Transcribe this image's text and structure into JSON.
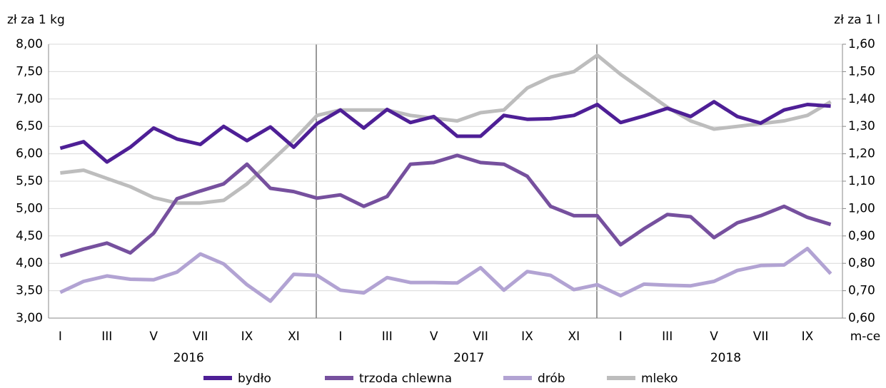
{
  "chart_data": {
    "type": "line",
    "y_label": "zł za 1 kg",
    "y2_label": "zł za 1 l",
    "x_label": "m-ce",
    "categories": [
      "I",
      null,
      "III",
      null,
      "V",
      null,
      "VII",
      null,
      "IX",
      null,
      "XI",
      null,
      "I",
      null,
      "III",
      null,
      "V",
      null,
      "VII",
      null,
      "IX",
      null,
      "XI",
      null,
      "I",
      null,
      "III",
      null,
      "V",
      null,
      "VII",
      null,
      "IX",
      null
    ],
    "years": [
      "2016",
      "2017",
      "2018"
    ],
    "ylim": [
      3,
      8
    ],
    "yticks": [
      {
        "value": 3,
        "label": "3,00"
      },
      {
        "value": 3.5,
        "label": "3,50"
      },
      {
        "value": 4,
        "label": "4,00"
      },
      {
        "value": 4.5,
        "label": "4,50"
      },
      {
        "value": 5,
        "label": "5,00"
      },
      {
        "value": 5.5,
        "label": "5,50"
      },
      {
        "value": 6,
        "label": "6,00"
      },
      {
        "value": 6.5,
        "label": "6,50"
      },
      {
        "value": 7,
        "label": "7,00"
      },
      {
        "value": 7.5,
        "label": "7,50"
      },
      {
        "value": 8,
        "label": "8,00"
      }
    ],
    "y2lim": [
      0.6,
      1.6
    ],
    "y2ticks": [
      {
        "value": 0.6,
        "label": "0,60"
      },
      {
        "value": 0.7,
        "label": "0,70"
      },
      {
        "value": 0.8,
        "label": "0,80"
      },
      {
        "value": 0.9,
        "label": "0,90"
      },
      {
        "value": 1.0,
        "label": "1,00"
      },
      {
        "value": 1.1,
        "label": "1,10"
      },
      {
        "value": 1.2,
        "label": "1,20"
      },
      {
        "value": 1.3,
        "label": "1,30"
      },
      {
        "value": 1.4,
        "label": "1,40"
      },
      {
        "value": 1.5,
        "label": "1,50"
      },
      {
        "value": 1.6,
        "label": "1,60"
      }
    ],
    "grid": true,
    "series": [
      {
        "name": "bydło",
        "color": "#4e1f96",
        "values": [
          6.1,
          6.22,
          5.85,
          6.12,
          6.47,
          6.27,
          6.17,
          6.5,
          6.24,
          6.49,
          6.12,
          6.55,
          6.8,
          6.47,
          6.81,
          6.57,
          6.68,
          6.32,
          6.32,
          6.7,
          6.63,
          6.64,
          6.7,
          6.9,
          6.57,
          6.69,
          6.83,
          6.68,
          6.95,
          6.68,
          6.56,
          6.8,
          6.9,
          6.87
        ]
      },
      {
        "name": "trzoda chlewna",
        "color": "#76509e",
        "values": [
          4.13,
          4.26,
          4.37,
          4.19,
          4.55,
          5.18,
          5.32,
          5.45,
          5.81,
          5.37,
          5.31,
          5.19,
          5.25,
          5.04,
          5.22,
          5.81,
          5.84,
          5.97,
          5.84,
          5.81,
          5.59,
          5.04,
          4.87,
          4.87,
          4.34,
          4.63,
          4.89,
          4.85,
          4.47,
          4.74,
          4.87,
          5.04,
          4.84,
          4.71
        ]
      },
      {
        "name": "drób",
        "color": "#b2a3d3",
        "values": [
          3.47,
          3.67,
          3.77,
          3.71,
          3.7,
          3.84,
          4.17,
          3.99,
          3.61,
          3.31,
          3.8,
          3.78,
          3.51,
          3.46,
          3.74,
          3.65,
          3.65,
          3.64,
          3.92,
          3.51,
          3.85,
          3.78,
          3.52,
          3.61,
          3.41,
          3.62,
          3.6,
          3.59,
          3.67,
          3.87,
          3.96,
          3.97,
          4.27,
          3.81
        ]
      },
      {
        "name": "mleko",
        "color": "#bdbdbd",
        "axis": "y2",
        "values": [
          1.13,
          1.14,
          1.11,
          1.08,
          1.04,
          1.02,
          1.02,
          1.03,
          1.09,
          1.17,
          1.25,
          1.34,
          1.36,
          1.36,
          1.36,
          1.34,
          1.33,
          1.32,
          1.35,
          1.36,
          1.44,
          1.48,
          1.5,
          1.56,
          1.49,
          1.43,
          1.37,
          1.32,
          1.29,
          1.3,
          1.31,
          1.32,
          1.34,
          1.39
        ]
      }
    ]
  }
}
